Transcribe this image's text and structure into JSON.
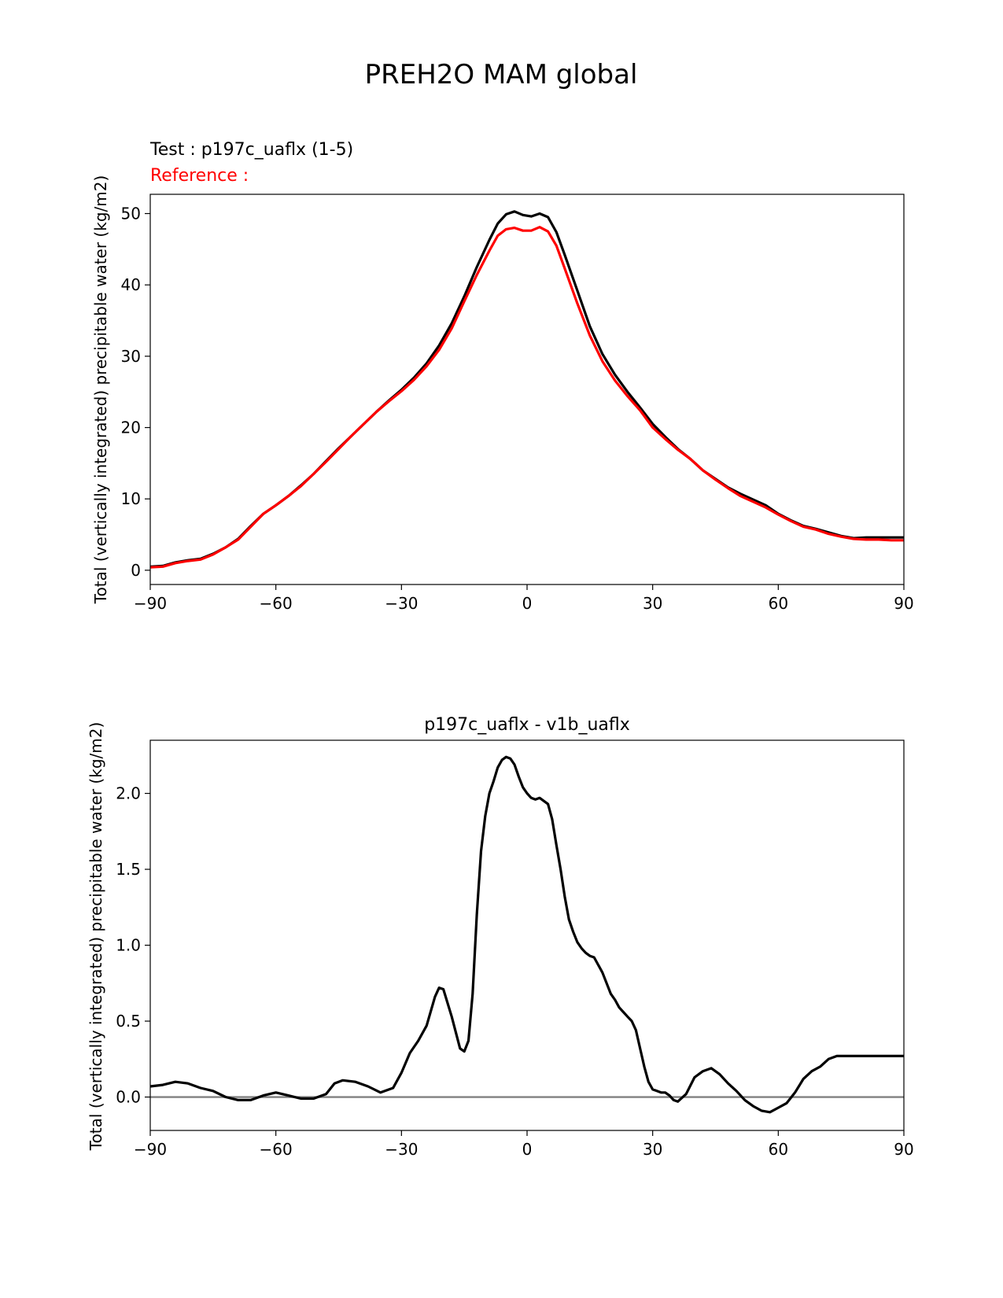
{
  "figure_title": "PREH2O MAM global",
  "chart_data": [
    {
      "type": "line",
      "title_test": "Test : p197c_uaflx (1-5)",
      "title_reference": "Reference :",
      "xlabel": "",
      "ylabel": "Total (vertically integrated) precipitable water (kg/m2)",
      "xlim": [
        -90,
        90
      ],
      "ylim": [
        -2,
        52.7
      ],
      "xticks": [
        -90,
        -60,
        -30,
        0,
        30,
        60,
        90
      ],
      "xtick_labels": [
        "−90",
        "−60",
        "−30",
        "0",
        "30",
        "60",
        "90"
      ],
      "yticks": [
        0,
        10,
        20,
        30,
        40,
        50
      ],
      "ytick_labels": [
        "0",
        "10",
        "20",
        "30",
        "40",
        "50"
      ],
      "grid": false,
      "colors": {
        "test": "#000000",
        "reference": "#ff0000"
      },
      "x": [
        -90,
        -87,
        -84,
        -81,
        -78,
        -75,
        -72,
        -69,
        -66,
        -63,
        -60,
        -57,
        -54,
        -51,
        -48,
        -45,
        -42,
        -39,
        -36,
        -33,
        -30,
        -27,
        -24,
        -21,
        -18,
        -15,
        -12,
        -9,
        -7,
        -5,
        -3,
        -1,
        1,
        3,
        5,
        7,
        9,
        12,
        15,
        18,
        21,
        24,
        27,
        30,
        33,
        36,
        39,
        42,
        45,
        48,
        51,
        54,
        57,
        60,
        63,
        66,
        69,
        72,
        75,
        78,
        81,
        84,
        87,
        90
      ],
      "series": [
        {
          "key": "test",
          "values": [
            0.5,
            0.6,
            1.1,
            1.4,
            1.6,
            2.3,
            3.2,
            4.4,
            6.2,
            7.9,
            9.1,
            10.4,
            11.9,
            13.5,
            15.3,
            17.1,
            18.8,
            20.5,
            22.2,
            23.8,
            25.3,
            27.0,
            29.0,
            31.5,
            34.6,
            38.4,
            42.5,
            46.3,
            48.6,
            49.9,
            50.3,
            49.8,
            49.6,
            50.0,
            49.5,
            47.4,
            44.2,
            39.2,
            34.2,
            30.3,
            27.4,
            25.0,
            22.8,
            20.5,
            18.7,
            17.0,
            15.6,
            14.0,
            12.8,
            11.6,
            10.7,
            9.9,
            9.1,
            7.9,
            7.0,
            6.2,
            5.8,
            5.3,
            4.8,
            4.5,
            4.6,
            4.6,
            4.6,
            4.6
          ]
        },
        {
          "key": "reference",
          "values": [
            0.4,
            0.5,
            1.0,
            1.3,
            1.5,
            2.2,
            3.2,
            4.3,
            6.1,
            7.9,
            9.1,
            10.4,
            11.8,
            13.5,
            15.2,
            17.0,
            18.8,
            20.5,
            22.2,
            23.7,
            25.1,
            26.7,
            28.6,
            30.9,
            33.9,
            37.7,
            41.4,
            44.8,
            46.9,
            47.8,
            48.0,
            47.6,
            47.6,
            48.1,
            47.5,
            45.5,
            42.3,
            37.4,
            32.9,
            29.3,
            26.6,
            24.4,
            22.4,
            20.0,
            18.4,
            16.9,
            15.6,
            14.0,
            12.7,
            11.5,
            10.4,
            9.6,
            8.8,
            7.8,
            6.9,
            6.1,
            5.7,
            5.1,
            4.7,
            4.4,
            4.3,
            4.3,
            4.2,
            4.2
          ]
        }
      ]
    },
    {
      "type": "line",
      "title": "p197c_uaflx - v1b_uaflx",
      "xlabel": "",
      "ylabel": "Total (vertically integrated) precipitable water (kg/m2)",
      "xlim": [
        -90,
        90
      ],
      "ylim": [
        -0.22,
        2.35
      ],
      "xticks": [
        -90,
        -60,
        -30,
        0,
        30,
        60,
        90
      ],
      "xtick_labels": [
        "−90",
        "−60",
        "−30",
        "0",
        "30",
        "60",
        "90"
      ],
      "yticks": [
        0.0,
        0.5,
        1.0,
        1.5,
        2.0
      ],
      "ytick_labels": [
        "0.0",
        "0.5",
        "1.0",
        "1.5",
        "2.0"
      ],
      "grid": false,
      "zero_line": 0,
      "colors": {
        "diff": "#000000",
        "zero_line": "#808080"
      },
      "x": [
        -90,
        -87,
        -84,
        -81,
        -78,
        -75,
        -72,
        -69,
        -66,
        -63,
        -60,
        -57,
        -54,
        -51,
        -48,
        -46,
        -44,
        -41,
        -38,
        -35,
        -32,
        -30,
        -28,
        -26,
        -24,
        -22,
        -21,
        -20,
        -18,
        -16,
        -15,
        -14,
        -13,
        -12,
        -11,
        -10,
        -9,
        -8,
        -7,
        -6,
        -5,
        -4,
        -3,
        -2,
        -1,
        0,
        1,
        2,
        3,
        4,
        5,
        6,
        7,
        8,
        9,
        10,
        11,
        12,
        13,
        14,
        15,
        16,
        17,
        18,
        19,
        20,
        21,
        22,
        23,
        24,
        25,
        26,
        27,
        28,
        29,
        30,
        31,
        32,
        33,
        34,
        35,
        36,
        38,
        40,
        42,
        44,
        46,
        48,
        50,
        52,
        54,
        56,
        58,
        60,
        62,
        64,
        66,
        68,
        70,
        72,
        74,
        76,
        78,
        80,
        82,
        84,
        86,
        88,
        90
      ],
      "values": [
        0.07,
        0.08,
        0.1,
        0.09,
        0.06,
        0.04,
        0.0,
        -0.02,
        -0.02,
        0.01,
        0.03,
        0.01,
        -0.01,
        -0.01,
        0.02,
        0.09,
        0.11,
        0.1,
        0.07,
        0.03,
        0.06,
        0.16,
        0.29,
        0.37,
        0.47,
        0.66,
        0.72,
        0.71,
        0.53,
        0.32,
        0.3,
        0.37,
        0.68,
        1.2,
        1.62,
        1.85,
        2.0,
        2.08,
        2.17,
        2.22,
        2.24,
        2.23,
        2.19,
        2.11,
        2.04,
        2.0,
        1.97,
        1.96,
        1.97,
        1.95,
        1.93,
        1.83,
        1.66,
        1.5,
        1.32,
        1.17,
        1.09,
        1.02,
        0.98,
        0.95,
        0.93,
        0.92,
        0.87,
        0.82,
        0.75,
        0.68,
        0.64,
        0.59,
        0.56,
        0.53,
        0.5,
        0.44,
        0.32,
        0.2,
        0.1,
        0.05,
        0.04,
        0.03,
        0.03,
        0.01,
        -0.02,
        -0.03,
        0.02,
        0.13,
        0.17,
        0.19,
        0.15,
        0.09,
        0.04,
        -0.02,
        -0.06,
        -0.09,
        -0.1,
        -0.07,
        -0.04,
        0.03,
        0.12,
        0.17,
        0.2,
        0.25,
        0.27,
        0.27,
        0.27,
        0.27,
        0.27,
        0.27,
        0.27,
        0.27,
        0.27
      ]
    }
  ]
}
